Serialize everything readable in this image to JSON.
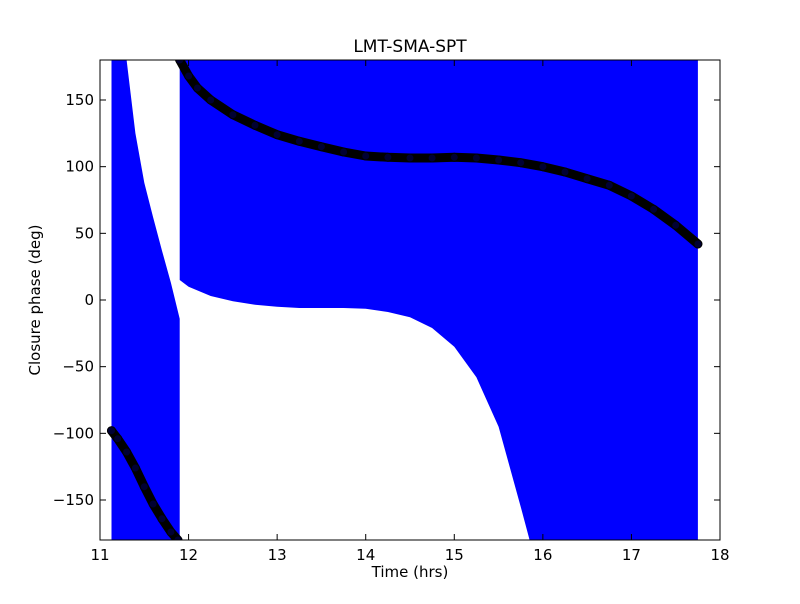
{
  "chart_data": {
    "type": "scatter",
    "title": "LMT-SMA-SPT",
    "xlabel": "Time (hrs)",
    "ylabel": "Closure phase (deg)",
    "xlim": [
      11,
      18
    ],
    "ylim": [
      -180,
      180
    ],
    "xticks": [
      "11",
      "12",
      "13",
      "14",
      "15",
      "16",
      "17",
      "18"
    ],
    "yticks": [
      "−150",
      "−100",
      "−50",
      "0",
      "50",
      "100",
      "150"
    ],
    "grid": false,
    "colors": {
      "errorbar": "#0000ff",
      "point_fill": "#000033",
      "point_edge": "#000000"
    },
    "series": [
      {
        "x": [
          11.13,
          11.2,
          11.3,
          11.4,
          11.5,
          11.6,
          11.7,
          11.8,
          11.88
        ],
        "y": [
          -98,
          -104,
          -114,
          -126,
          -140,
          -153,
          -164,
          -174,
          -180
        ]
      },
      {
        "x": [
          11.9,
          12.0,
          12.1,
          12.25,
          12.5,
          12.75,
          13.0,
          13.25,
          13.5,
          13.75,
          14.0,
          14.25,
          14.5,
          14.75,
          15.0,
          15.25,
          15.5,
          15.75,
          16.0,
          16.25,
          16.5,
          16.75,
          17.0,
          17.25,
          17.5,
          17.75
        ],
        "y": [
          180,
          168,
          159,
          150,
          139,
          131,
          124,
          119,
          115,
          111,
          108,
          107,
          106.5,
          106.5,
          107,
          106.5,
          105,
          103,
          100,
          96,
          91,
          86,
          78,
          68,
          56,
          42
        ]
      }
    ],
    "error_bounds": [
      {
        "x": [
          11.13,
          11.2,
          11.3,
          11.4,
          11.5,
          11.6,
          11.7,
          11.8,
          11.9
        ],
        "lower": [
          -180,
          -180,
          -180,
          -180,
          -180,
          -180,
          -180,
          -180,
          -180
        ],
        "upper": [
          180,
          180,
          180,
          125,
          88,
          62,
          37,
          13,
          -14
        ]
      },
      {
        "x": [
          11.9,
          12.0,
          12.25,
          12.5,
          12.75,
          13.0,
          13.25,
          13.5,
          13.75,
          14.0,
          14.25,
          14.5,
          14.75,
          15.0,
          15.25,
          15.5,
          15.75,
          15.85,
          16.0,
          16.5,
          17.0,
          17.5,
          17.75
        ],
        "lower": [
          15,
          10,
          3,
          -1,
          -3.5,
          -5,
          -6,
          -6,
          -6,
          -6.5,
          -9,
          -13,
          -21,
          -35,
          -58,
          -95,
          -155,
          -180,
          -180,
          -180,
          -180,
          -180,
          -180
        ],
        "upper": [
          180,
          180,
          180,
          180,
          180,
          180,
          180,
          180,
          180,
          180,
          180,
          180,
          180,
          180,
          180,
          180,
          180,
          180,
          180,
          180,
          180,
          180,
          180
        ]
      }
    ]
  }
}
